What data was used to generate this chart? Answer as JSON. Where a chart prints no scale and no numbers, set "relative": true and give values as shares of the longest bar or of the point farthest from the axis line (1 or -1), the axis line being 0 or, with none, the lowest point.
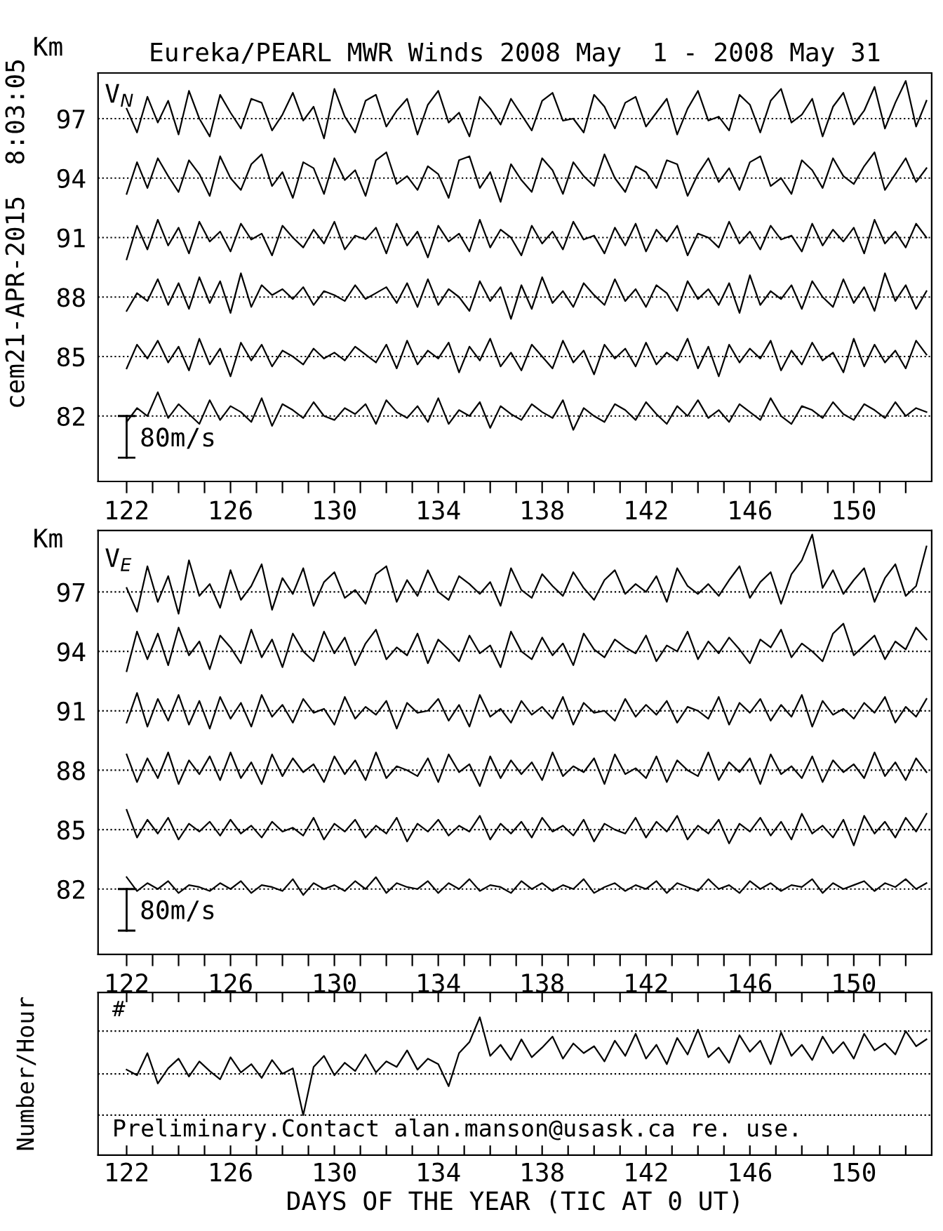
{
  "chart_data": [
    {
      "type": "line",
      "title": "Eureka/PEARL MWR Winds 2008 May  1 - 2008 May 31",
      "ylabel": "Km",
      "annotations": [
        "cem21-APR-2015  8:03:05",
        "V$_{N}$",
        "80m/s"
      ],
      "xlim": [
        120.9,
        153.0
      ],
      "ylim": [
        78.7,
        99.3
      ],
      "yticks": [
        82,
        85,
        88,
        91,
        94,
        97
      ],
      "grid": "y",
      "xticks": [
        122,
        {
          "value": 123,
          "label": null
        },
        {
          "value": 124,
          "label": null
        },
        {
          "value": 125,
          "label": null
        },
        126,
        {
          "value": 127,
          "label": null
        },
        {
          "value": 128,
          "label": null
        },
        {
          "value": 129,
          "label": null
        },
        130,
        {
          "value": 131,
          "label": null
        },
        {
          "value": 132,
          "label": null
        },
        {
          "value": 133,
          "label": null
        },
        134,
        {
          "value": 135,
          "label": null
        },
        {
          "value": 136,
          "label": null
        },
        {
          "value": 137,
          "label": null
        },
        138,
        {
          "value": 139,
          "label": null
        },
        {
          "value": 140,
          "label": null
        },
        {
          "value": 141,
          "label": null
        },
        142,
        {
          "value": 143,
          "label": null
        },
        {
          "value": 144,
          "label": null
        },
        {
          "value": 145,
          "label": null
        },
        146,
        {
          "value": 147,
          "label": null
        },
        {
          "value": 148,
          "label": null
        },
        {
          "value": 149,
          "label": null
        },
        150,
        {
          "value": 151,
          "label": null
        },
        {
          "value": 152,
          "label": null
        }
      ],
      "x": [
        122.0,
        122.4,
        122.8,
        123.2,
        123.6,
        124.0,
        124.4,
        124.8,
        125.2,
        125.6,
        126.0,
        126.4,
        126.8,
        127.2,
        127.6,
        128.0,
        128.4,
        128.8,
        129.2,
        129.6,
        130.0,
        130.4,
        130.8,
        131.2,
        131.6,
        132.0,
        132.4,
        132.8,
        133.2,
        133.6,
        134.0,
        134.4,
        134.8,
        135.2,
        135.6,
        136.0,
        136.4,
        136.8,
        137.2,
        137.6,
        138.0,
        138.4,
        138.8,
        139.2,
        139.6,
        140.0,
        140.4,
        140.8,
        141.2,
        141.6,
        142.0,
        142.4,
        142.8,
        143.2,
        143.6,
        144.0,
        144.4,
        144.8,
        145.2,
        145.6,
        146.0,
        146.4,
        146.8,
        147.2,
        147.6,
        148.0,
        148.4,
        148.8,
        149.2,
        149.6,
        150.0,
        150.4,
        150.8,
        151.2,
        151.6,
        152.0,
        152.4,
        152.8
      ],
      "series": [
        {
          "color": "#000000",
          "values": [
            97.5,
            96.3,
            98.1,
            96.8,
            97.9,
            96.2,
            98.4,
            97.0,
            96.1,
            98.2,
            97.3,
            96.5,
            98.0,
            97.8,
            96.4,
            97.2,
            98.3,
            96.9,
            97.6,
            96.0,
            98.5,
            97.1,
            96.3,
            97.9,
            98.2,
            96.6,
            97.4,
            98.0,
            96.2,
            97.7,
            98.4,
            96.8,
            97.3,
            96.1,
            98.1,
            97.5,
            96.7,
            98.0,
            97.2,
            96.4,
            97.9,
            98.3,
            96.9,
            97.0,
            96.3,
            98.2,
            97.6,
            96.5,
            97.8,
            98.1,
            96.6,
            97.3,
            98.0,
            96.2,
            97.5,
            98.4,
            96.9,
            97.1,
            96.4,
            98.2,
            97.7,
            96.3,
            97.9,
            98.5,
            96.8,
            97.2,
            98.0,
            96.1,
            97.6,
            98.3,
            96.7,
            97.4,
            98.6,
            96.5,
            97.8,
            98.9,
            96.6,
            97.9
          ]
        },
        {
          "color": "#000000",
          "values": [
            93.2,
            94.8,
            93.5,
            95.0,
            94.1,
            93.3,
            94.9,
            94.2,
            93.1,
            95.1,
            94.0,
            93.4,
            94.7,
            95.2,
            93.6,
            94.3,
            93.0,
            94.8,
            94.5,
            93.2,
            95.0,
            93.9,
            94.4,
            93.1,
            94.9,
            95.3,
            93.7,
            94.1,
            93.4,
            94.6,
            94.2,
            93.0,
            94.9,
            95.1,
            93.5,
            94.3,
            92.8,
            94.7,
            93.9,
            93.3,
            95.0,
            94.4,
            93.2,
            94.8,
            94.1,
            93.6,
            95.2,
            94.0,
            93.3,
            94.6,
            94.3,
            93.5,
            94.9,
            94.7,
            93.1,
            94.2,
            95.0,
            93.8,
            94.5,
            93.4,
            94.8,
            95.1,
            93.6,
            94.0,
            93.2,
            94.9,
            94.4,
            93.5,
            95.0,
            94.1,
            93.7,
            94.6,
            95.3,
            93.4,
            94.2,
            95.0,
            93.8,
            94.5
          ]
        },
        {
          "color": "#000000",
          "values": [
            89.9,
            91.6,
            90.4,
            91.9,
            90.6,
            91.5,
            90.2,
            91.8,
            90.8,
            91.3,
            90.3,
            91.7,
            90.9,
            91.2,
            90.1,
            91.6,
            91.0,
            90.5,
            91.4,
            90.7,
            91.8,
            90.4,
            91.1,
            90.9,
            91.5,
            90.2,
            91.7,
            90.6,
            91.3,
            90.0,
            91.6,
            90.8,
            91.2,
            90.3,
            91.9,
            90.5,
            91.4,
            91.0,
            90.1,
            91.6,
            90.7,
            91.3,
            90.4,
            91.8,
            90.9,
            91.1,
            90.2,
            91.5,
            90.6,
            91.7,
            90.3,
            91.4,
            90.8,
            91.6,
            90.1,
            91.2,
            91.0,
            90.5,
            91.8,
            90.7,
            91.3,
            90.4,
            91.6,
            90.9,
            91.1,
            90.3,
            91.7,
            90.6,
            91.4,
            90.8,
            91.5,
            90.2,
            91.9,
            90.7,
            91.3,
            90.5,
            91.7,
            91.0
          ]
        },
        {
          "color": "#000000",
          "values": [
            87.3,
            88.2,
            87.8,
            88.9,
            87.6,
            88.7,
            87.4,
            89.0,
            87.7,
            88.8,
            87.2,
            89.2,
            87.5,
            88.6,
            88.1,
            88.4,
            87.9,
            88.5,
            87.6,
            88.3,
            88.1,
            87.8,
            88.6,
            87.9,
            88.2,
            88.5,
            87.7,
            88.7,
            87.5,
            88.9,
            87.6,
            88.4,
            88.0,
            87.3,
            88.8,
            87.8,
            88.5,
            86.9,
            88.6,
            87.4,
            89.0,
            87.7,
            88.3,
            87.5,
            88.7,
            88.1,
            87.6,
            88.9,
            87.8,
            88.4,
            87.5,
            88.6,
            88.2,
            87.3,
            88.8,
            87.9,
            88.4,
            87.6,
            88.7,
            87.2,
            89.1,
            87.6,
            88.3,
            87.9,
            88.6,
            87.4,
            88.8,
            88.0,
            87.5,
            88.9,
            87.7,
            88.5,
            87.3,
            89.2,
            87.8,
            88.6,
            87.4,
            88.3
          ]
        },
        {
          "color": "#000000",
          "values": [
            84.4,
            85.6,
            84.9,
            85.8,
            84.7,
            85.5,
            84.3,
            85.9,
            84.6,
            85.4,
            84.0,
            85.7,
            84.8,
            85.6,
            84.5,
            85.3,
            85.0,
            84.6,
            85.4,
            84.9,
            85.2,
            84.8,
            85.5,
            85.1,
            84.7,
            85.6,
            84.4,
            85.8,
            84.6,
            85.3,
            84.9,
            85.7,
            84.2,
            85.5,
            84.8,
            85.9,
            84.5,
            85.2,
            84.3,
            85.6,
            85.0,
            84.4,
            85.8,
            84.7,
            85.3,
            84.1,
            85.6,
            84.9,
            85.4,
            84.5,
            85.7,
            84.6,
            85.2,
            84.8,
            85.9,
            84.4,
            85.5,
            84.0,
            85.6,
            84.7,
            85.4,
            84.9,
            85.8,
            84.3,
            85.3,
            84.6,
            85.7,
            84.8,
            85.2,
            84.2,
            85.9,
            84.5,
            85.6,
            84.7,
            85.3,
            84.4,
            85.8,
            85.1
          ]
        },
        {
          "color": "#000000",
          "values": [
            81.7,
            82.4,
            82.0,
            83.2,
            81.9,
            82.6,
            82.1,
            81.6,
            82.8,
            81.8,
            82.5,
            82.2,
            81.7,
            82.9,
            81.5,
            82.6,
            82.3,
            81.9,
            82.7,
            82.0,
            81.8,
            82.4,
            82.1,
            82.6,
            81.6,
            82.8,
            82.2,
            81.9,
            82.5,
            81.7,
            82.9,
            81.6,
            82.3,
            82.0,
            82.7,
            81.4,
            82.5,
            82.1,
            81.8,
            82.6,
            82.2,
            81.9,
            82.8,
            81.3,
            82.4,
            82.0,
            81.7,
            82.6,
            82.3,
            81.8,
            82.7,
            82.1,
            81.6,
            82.5,
            82.0,
            82.8,
            81.9,
            82.3,
            81.7,
            82.6,
            82.2,
            81.8,
            82.9,
            82.0,
            81.6,
            82.5,
            82.3,
            81.9,
            82.7,
            82.1,
            81.8,
            82.6,
            82.3,
            81.9,
            82.7,
            82.0,
            82.4,
            82.2
          ]
        }
      ]
    },
    {
      "type": "line",
      "ylabel": "Km",
      "annotations": [
        "V$_{E}$",
        "80m/s"
      ],
      "xlim": [
        120.9,
        153.0
      ],
      "ylim": [
        78.7,
        100.1
      ],
      "yticks": [
        82,
        85,
        88,
        91,
        94,
        97
      ],
      "grid": "y",
      "xticks": [
        122,
        {
          "value": 123,
          "label": null
        },
        {
          "value": 124,
          "label": null
        },
        {
          "value": 125,
          "label": null
        },
        126,
        {
          "value": 127,
          "label": null
        },
        {
          "value": 128,
          "label": null
        },
        {
          "value": 129,
          "label": null
        },
        130,
        {
          "value": 131,
          "label": null
        },
        {
          "value": 132,
          "label": null
        },
        {
          "value": 133,
          "label": null
        },
        134,
        {
          "value": 135,
          "label": null
        },
        {
          "value": 136,
          "label": null
        },
        {
          "value": 137,
          "label": null
        },
        138,
        {
          "value": 139,
          "label": null
        },
        {
          "value": 140,
          "label": null
        },
        {
          "value": 141,
          "label": null
        },
        142,
        {
          "value": 143,
          "label": null
        },
        {
          "value": 144,
          "label": null
        },
        {
          "value": 145,
          "label": null
        },
        146,
        {
          "value": 147,
          "label": null
        },
        {
          "value": 148,
          "label": null
        },
        {
          "value": 149,
          "label": null
        },
        150,
        {
          "value": 151,
          "label": null
        },
        {
          "value": 152,
          "label": null
        }
      ],
      "x": [
        122.0,
        122.4,
        122.8,
        123.2,
        123.6,
        124.0,
        124.4,
        124.8,
        125.2,
        125.6,
        126.0,
        126.4,
        126.8,
        127.2,
        127.6,
        128.0,
        128.4,
        128.8,
        129.2,
        129.6,
        130.0,
        130.4,
        130.8,
        131.2,
        131.6,
        132.0,
        132.4,
        132.8,
        133.2,
        133.6,
        134.0,
        134.4,
        134.8,
        135.2,
        135.6,
        136.0,
        136.4,
        136.8,
        137.2,
        137.6,
        138.0,
        138.4,
        138.8,
        139.2,
        139.6,
        140.0,
        140.4,
        140.8,
        141.2,
        141.6,
        142.0,
        142.4,
        142.8,
        143.2,
        143.6,
        144.0,
        144.4,
        144.8,
        145.2,
        145.6,
        146.0,
        146.4,
        146.8,
        147.2,
        147.6,
        148.0,
        148.4,
        148.8,
        149.2,
        149.6,
        150.0,
        150.4,
        150.8,
        151.2,
        151.6,
        152.0,
        152.4,
        152.8
      ],
      "series": [
        {
          "color": "#000000",
          "values": [
            97.2,
            96.0,
            98.3,
            96.5,
            97.8,
            95.9,
            98.6,
            96.8,
            97.4,
            96.2,
            98.1,
            96.6,
            97.3,
            98.4,
            96.1,
            97.7,
            96.9,
            98.2,
            96.3,
            97.5,
            98.0,
            96.7,
            97.1,
            96.4,
            97.9,
            98.3,
            96.5,
            97.6,
            96.8,
            98.1,
            97.0,
            96.6,
            97.8,
            97.4,
            96.9,
            97.5,
            96.3,
            98.2,
            97.1,
            96.7,
            97.9,
            97.3,
            96.8,
            98.0,
            97.2,
            96.6,
            97.6,
            98.1,
            96.9,
            97.4,
            97.0,
            97.8,
            96.5,
            98.2,
            97.3,
            96.9,
            97.4,
            96.8,
            97.6,
            98.3,
            96.7,
            97.5,
            98.0,
            96.4,
            97.9,
            98.6,
            99.9,
            97.2,
            98.1,
            96.9,
            97.6,
            98.2,
            96.5,
            97.7,
            98.4,
            96.8,
            97.3,
            99.3
          ]
        },
        {
          "color": "#000000",
          "values": [
            93.0,
            95.0,
            93.6,
            94.9,
            93.3,
            95.2,
            93.8,
            94.5,
            93.1,
            94.8,
            94.2,
            93.4,
            95.1,
            93.7,
            94.6,
            93.2,
            94.9,
            94.0,
            93.5,
            95.0,
            93.9,
            94.7,
            93.3,
            94.4,
            95.1,
            93.6,
            94.2,
            93.8,
            94.9,
            93.4,
            94.6,
            94.1,
            93.5,
            94.8,
            93.9,
            94.3,
            93.2,
            95.0,
            94.0,
            93.6,
            94.7,
            93.8,
            94.4,
            93.3,
            94.9,
            94.1,
            93.7,
            94.6,
            94.2,
            93.9,
            94.8,
            93.5,
            94.3,
            94.0,
            95.0,
            93.6,
            94.5,
            93.9,
            94.7,
            94.1,
            93.4,
            94.6,
            94.2,
            95.1,
            93.7,
            94.4,
            94.0,
            93.5,
            94.9,
            95.4,
            93.8,
            94.3,
            94.8,
            93.6,
            94.5,
            94.1,
            95.2,
            94.6
          ]
        },
        {
          "color": "#000000",
          "values": [
            90.4,
            91.9,
            90.2,
            91.6,
            90.5,
            91.8,
            90.3,
            91.5,
            90.1,
            91.7,
            90.6,
            91.4,
            90.2,
            91.8,
            90.7,
            91.3,
            90.4,
            91.6,
            90.9,
            91.1,
            90.3,
            91.7,
            90.6,
            91.2,
            90.8,
            91.5,
            90.1,
            91.4,
            90.9,
            91.0,
            91.6,
            90.5,
            91.3,
            90.2,
            91.8,
            90.7,
            91.1,
            90.4,
            91.5,
            90.8,
            91.2,
            90.6,
            91.7,
            90.3,
            91.4,
            90.9,
            91.0,
            90.5,
            91.6,
            90.7,
            91.3,
            90.8,
            91.5,
            90.4,
            91.2,
            91.0,
            90.6,
            91.7,
            90.3,
            91.4,
            90.9,
            91.6,
            90.5,
            91.3,
            90.7,
            91.8,
            90.2,
            91.5,
            90.8,
            91.1,
            90.6,
            91.4,
            90.9,
            91.7,
            90.4,
            91.2,
            90.7,
            91.6
          ]
        },
        {
          "color": "#000000",
          "values": [
            88.8,
            87.4,
            88.6,
            87.6,
            88.9,
            87.3,
            88.5,
            87.8,
            88.7,
            87.5,
            88.9,
            87.6,
            88.4,
            87.3,
            88.8,
            87.7,
            88.6,
            87.9,
            88.3,
            87.4,
            88.7,
            87.8,
            88.5,
            87.5,
            88.9,
            87.6,
            88.2,
            88.0,
            87.7,
            88.6,
            87.4,
            88.8,
            87.9,
            88.3,
            87.2,
            88.7,
            87.6,
            88.5,
            87.8,
            88.4,
            87.5,
            88.9,
            87.7,
            88.2,
            87.9,
            88.6,
            87.3,
            88.8,
            87.8,
            88.1,
            87.6,
            88.7,
            87.4,
            88.5,
            88.0,
            87.7,
            88.9,
            87.5,
            88.4,
            87.9,
            88.6,
            87.3,
            88.8,
            87.8,
            88.2,
            87.6,
            88.7,
            87.4,
            88.5,
            87.9,
            88.3,
            87.6,
            88.9,
            87.7,
            88.4,
            87.5,
            88.6,
            87.9
          ]
        },
        {
          "color": "#000000",
          "values": [
            86.0,
            84.6,
            85.5,
            84.8,
            85.6,
            84.5,
            85.3,
            84.9,
            85.4,
            84.7,
            85.5,
            84.8,
            85.2,
            84.6,
            85.4,
            84.9,
            85.1,
            84.7,
            85.6,
            84.5,
            85.3,
            84.9,
            85.5,
            84.6,
            85.2,
            84.8,
            85.6,
            84.4,
            85.3,
            84.9,
            85.5,
            84.7,
            85.2,
            84.9,
            85.7,
            84.5,
            85.3,
            84.8,
            85.4,
            84.6,
            85.6,
            84.9,
            85.2,
            84.7,
            85.5,
            84.4,
            85.3,
            85.0,
            84.8,
            85.6,
            84.6,
            85.4,
            84.9,
            85.7,
            84.5,
            85.2,
            84.8,
            85.5,
            84.3,
            85.3,
            84.9,
            85.6,
            84.7,
            85.4,
            84.5,
            85.8,
            84.8,
            85.2,
            84.6,
            85.5,
            84.2,
            85.7,
            84.8,
            85.4,
            84.6,
            85.6,
            84.9,
            85.8
          ]
        },
        {
          "color": "#000000",
          "values": [
            82.6,
            81.9,
            82.3,
            82.0,
            82.4,
            81.8,
            82.2,
            82.1,
            81.9,
            82.3,
            82.0,
            82.4,
            81.8,
            82.2,
            82.1,
            81.9,
            82.5,
            81.7,
            82.3,
            82.0,
            82.2,
            81.9,
            82.4,
            82.0,
            82.6,
            81.8,
            82.3,
            82.1,
            82.0,
            82.4,
            81.8,
            82.3,
            82.0,
            82.5,
            81.9,
            82.2,
            82.1,
            81.8,
            82.4,
            82.0,
            82.3,
            81.9,
            82.2,
            82.0,
            82.5,
            81.8,
            82.1,
            82.3,
            81.9,
            82.2,
            82.0,
            82.4,
            81.8,
            82.3,
            82.1,
            81.9,
            82.5,
            82.0,
            82.2,
            81.8,
            82.4,
            82.0,
            82.3,
            81.9,
            82.2,
            82.1,
            82.5,
            81.8,
            82.3,
            82.0,
            82.2,
            82.4,
            81.9,
            82.3,
            82.1,
            82.5,
            82.0,
            82.3
          ]
        }
      ]
    },
    {
      "type": "line",
      "relative": true,
      "ylabel": "Number/Hour",
      "xlabel": "DAYS OF THE YEAR (TIC AT 0 UT)",
      "tick_labels": "x",
      "annotations": [
        "#",
        "Preliminary.Contact alan.manson@usask.ca re. use."
      ],
      "ref_lines": [
        {
          "axis": "y",
          "value": 0.29,
          "color": "#000000",
          "line_style": "dotted"
        },
        {
          "axis": "y",
          "value": 0.59,
          "color": "#000000",
          "line_style": "dotted"
        },
        {
          "axis": "y",
          "value": 0.9,
          "color": "#000000",
          "line_style": "dotted"
        }
      ],
      "xlim": [
        120.9,
        153.0
      ],
      "xticks": [
        122,
        {
          "value": 123,
          "label": null
        },
        {
          "value": 124,
          "label": null
        },
        {
          "value": 125,
          "label": null
        },
        126,
        {
          "value": 127,
          "label": null
        },
        {
          "value": 128,
          "label": null
        },
        {
          "value": 129,
          "label": null
        },
        130,
        {
          "value": 131,
          "label": null
        },
        {
          "value": 132,
          "label": null
        },
        {
          "value": 133,
          "label": null
        },
        134,
        {
          "value": 135,
          "label": null
        },
        {
          "value": 136,
          "label": null
        },
        {
          "value": 137,
          "label": null
        },
        138,
        {
          "value": 139,
          "label": null
        },
        {
          "value": 140,
          "label": null
        },
        {
          "value": 141,
          "label": null
        },
        142,
        {
          "value": 143,
          "label": null
        },
        {
          "value": 144,
          "label": null
        },
        {
          "value": 145,
          "label": null
        },
        146,
        {
          "value": 147,
          "label": null
        },
        {
          "value": 148,
          "label": null
        },
        {
          "value": 149,
          "label": null
        },
        150,
        {
          "value": 151,
          "label": null
        },
        {
          "value": 152,
          "label": null
        }
      ],
      "x": [
        122.0,
        122.4,
        122.8,
        123.2,
        123.6,
        124.0,
        124.4,
        124.8,
        125.2,
        125.6,
        126.0,
        126.4,
        126.8,
        127.2,
        127.6,
        128.0,
        128.4,
        128.8,
        129.2,
        129.6,
        130.0,
        130.4,
        130.8,
        131.2,
        131.6,
        132.0,
        132.4,
        132.8,
        133.2,
        133.6,
        134.0,
        134.4,
        134.8,
        135.2,
        135.6,
        136.0,
        136.4,
        136.8,
        137.2,
        137.6,
        138.0,
        138.4,
        138.8,
        139.2,
        139.6,
        140.0,
        140.4,
        140.8,
        141.2,
        141.6,
        142.0,
        142.4,
        142.8,
        143.2,
        143.6,
        144.0,
        144.4,
        144.8,
        145.2,
        145.6,
        146.0,
        146.4,
        146.8,
        147.2,
        147.6,
        148.0,
        148.4,
        148.8,
        149.2,
        149.6,
        150.0,
        150.4,
        150.8,
        151.2,
        151.6,
        152.0,
        152.4,
        152.8
      ],
      "series": [
        {
          "color": "#000000",
          "values": [
            0.62,
            0.58,
            0.74,
            0.52,
            0.63,
            0.7,
            0.57,
            0.68,
            0.61,
            0.55,
            0.71,
            0.6,
            0.66,
            0.56,
            0.69,
            0.59,
            0.63,
            0.29,
            0.64,
            0.72,
            0.58,
            0.67,
            0.61,
            0.73,
            0.6,
            0.68,
            0.64,
            0.76,
            0.62,
            0.7,
            0.66,
            0.5,
            0.74,
            0.82,
            1.0,
            0.72,
            0.8,
            0.69,
            0.84,
            0.71,
            0.78,
            0.86,
            0.7,
            0.81,
            0.74,
            0.79,
            0.68,
            0.83,
            0.72,
            0.88,
            0.7,
            0.8,
            0.66,
            0.85,
            0.73,
            0.91,
            0.71,
            0.78,
            0.67,
            0.87,
            0.75,
            0.83,
            0.66,
            0.89,
            0.72,
            0.8,
            0.69,
            0.86,
            0.74,
            0.82,
            0.7,
            0.88,
            0.76,
            0.81,
            0.73,
            0.9,
            0.79,
            0.84
          ]
        }
      ]
    }
  ]
}
